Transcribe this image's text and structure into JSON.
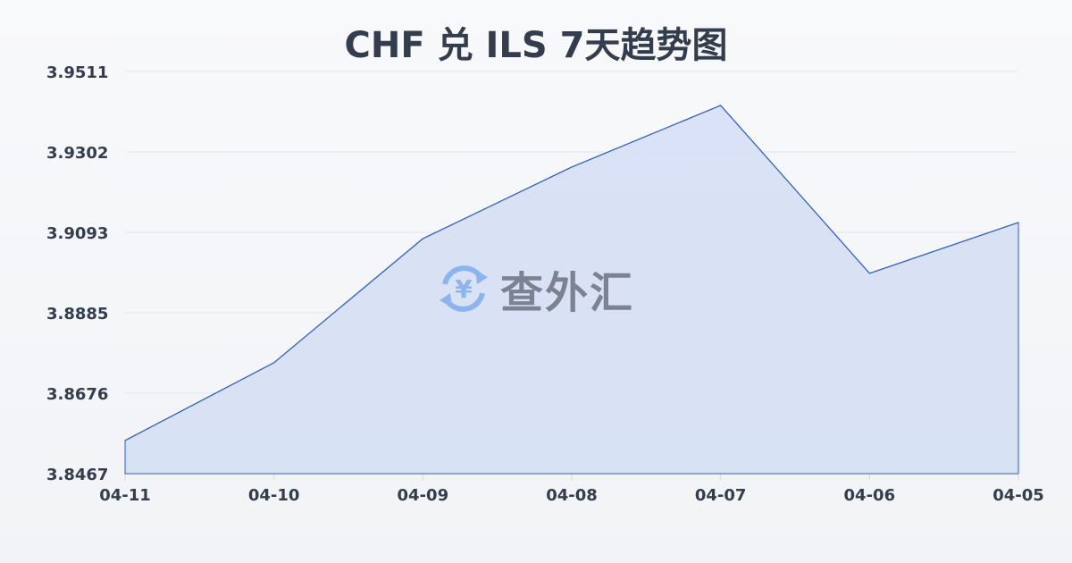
{
  "chart_data": {
    "type": "area",
    "title": "CHF 兑 ILS 7天趋势图",
    "categories": [
      "04-11",
      "04-10",
      "04-09",
      "04-08",
      "04-07",
      "04-06",
      "04-05"
    ],
    "series": [
      {
        "values": [
          3.8553,
          3.8755,
          3.9077,
          3.9263,
          3.9423,
          3.8987,
          3.9119
        ]
      }
    ],
    "yticks": [
      "3.8467",
      "3.8676",
      "3.8885",
      "3.9093",
      "3.9302",
      "3.9511"
    ],
    "ylim": [
      3.8467,
      3.9511
    ],
    "grid": true,
    "colors": {
      "line": "#2f5fc4",
      "fill": "#d3def5"
    }
  },
  "watermark": {
    "text": "查外汇",
    "icon": "yen-exchange-icon"
  }
}
